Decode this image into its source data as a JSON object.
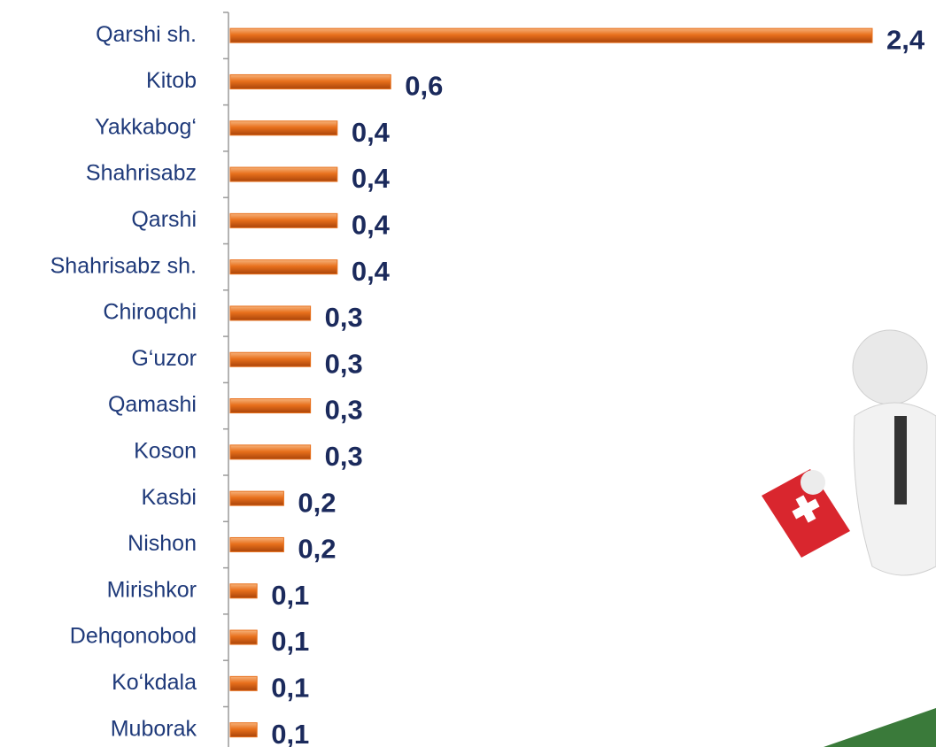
{
  "chart_data": {
    "type": "hbar",
    "categories": [
      "Qarshi sh.",
      "Kitob",
      "Yakkabog‘",
      "Shahrisabz",
      "Qarshi",
      "Shahrisabz sh.",
      "Chiroqchi",
      "G‘uzor",
      "Qamashi",
      "Koson",
      "Kasbi",
      "Nishon",
      "Mirishkor",
      "Dehqonobod",
      "Ko‘kdala",
      "Muborak"
    ],
    "values": [
      2.4,
      0.6,
      0.4,
      0.4,
      0.4,
      0.4,
      0.3,
      0.3,
      0.3,
      0.3,
      0.2,
      0.2,
      0.1,
      0.1,
      0.1,
      0.1
    ],
    "value_labels": [
      "2,4",
      "0,6",
      "0,4",
      "0,4",
      "0,4",
      "0,4",
      "0,3",
      "0,3",
      "0,3",
      "0,3",
      "0,2",
      "0,2",
      "0,1",
      "0,1",
      "0,1",
      "0,1"
    ],
    "color": "#e8701c"
  }
}
